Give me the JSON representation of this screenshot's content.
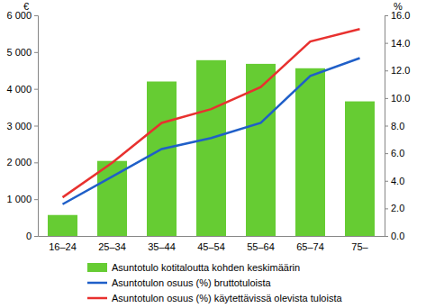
{
  "chart_data": {
    "type": "combo",
    "ylabel": "€",
    "y2label": "%",
    "categories": [
      "16–24",
      "25–34",
      "35–44",
      "45–54",
      "55–64",
      "65–74",
      "75–"
    ],
    "ylim": [
      0,
      6000
    ],
    "yticks": [
      0,
      {
        "value": 1000,
        "label": "1 000"
      },
      {
        "value": 2000,
        "label": "2 000"
      },
      {
        "value": 3000,
        "label": "3 000"
      },
      {
        "value": 4000,
        "label": "4 000"
      },
      {
        "value": 5000,
        "label": "5 000"
      },
      {
        "value": 6000,
        "label": "6 000"
      }
    ],
    "y2lim": [
      0,
      16
    ],
    "y2ticks": [
      {
        "value": 0,
        "label": "0.0"
      },
      {
        "value": 2,
        "label": "2.0"
      },
      {
        "value": 4,
        "label": "4.0"
      },
      {
        "value": 6,
        "label": "6.0"
      },
      {
        "value": 8,
        "label": "8.0"
      },
      {
        "value": 10,
        "label": "10.0"
      },
      {
        "value": 12,
        "label": "12.0"
      },
      {
        "value": 14,
        "label": "14.0"
      },
      {
        "value": 16,
        "label": "16.0"
      }
    ],
    "grid": false,
    "legend": "bottom",
    "series": [
      {
        "name": "Asuntotulo kotitaloutta kohden keskimäärin",
        "type": "bar",
        "color": "#66cc33",
        "values": [
          570,
          2040,
          4200,
          4780,
          4680,
          4560,
          3660
        ]
      },
      {
        "name": "Asuntotulon osuus (%) bruttotuloista",
        "type": "line",
        "axis": "y2",
        "color": "#1f5fc8",
        "values": [
          2.3,
          4.3,
          6.3,
          7.1,
          8.2,
          11.6,
          12.9
        ]
      },
      {
        "name": "Asuntotulon osuus (%) käytettävissä olevista tuloista",
        "type": "line",
        "axis": "y2",
        "color": "#e8312f",
        "values": [
          2.8,
          5.3,
          8.2,
          9.2,
          10.8,
          14.1,
          15.0
        ]
      }
    ]
  }
}
